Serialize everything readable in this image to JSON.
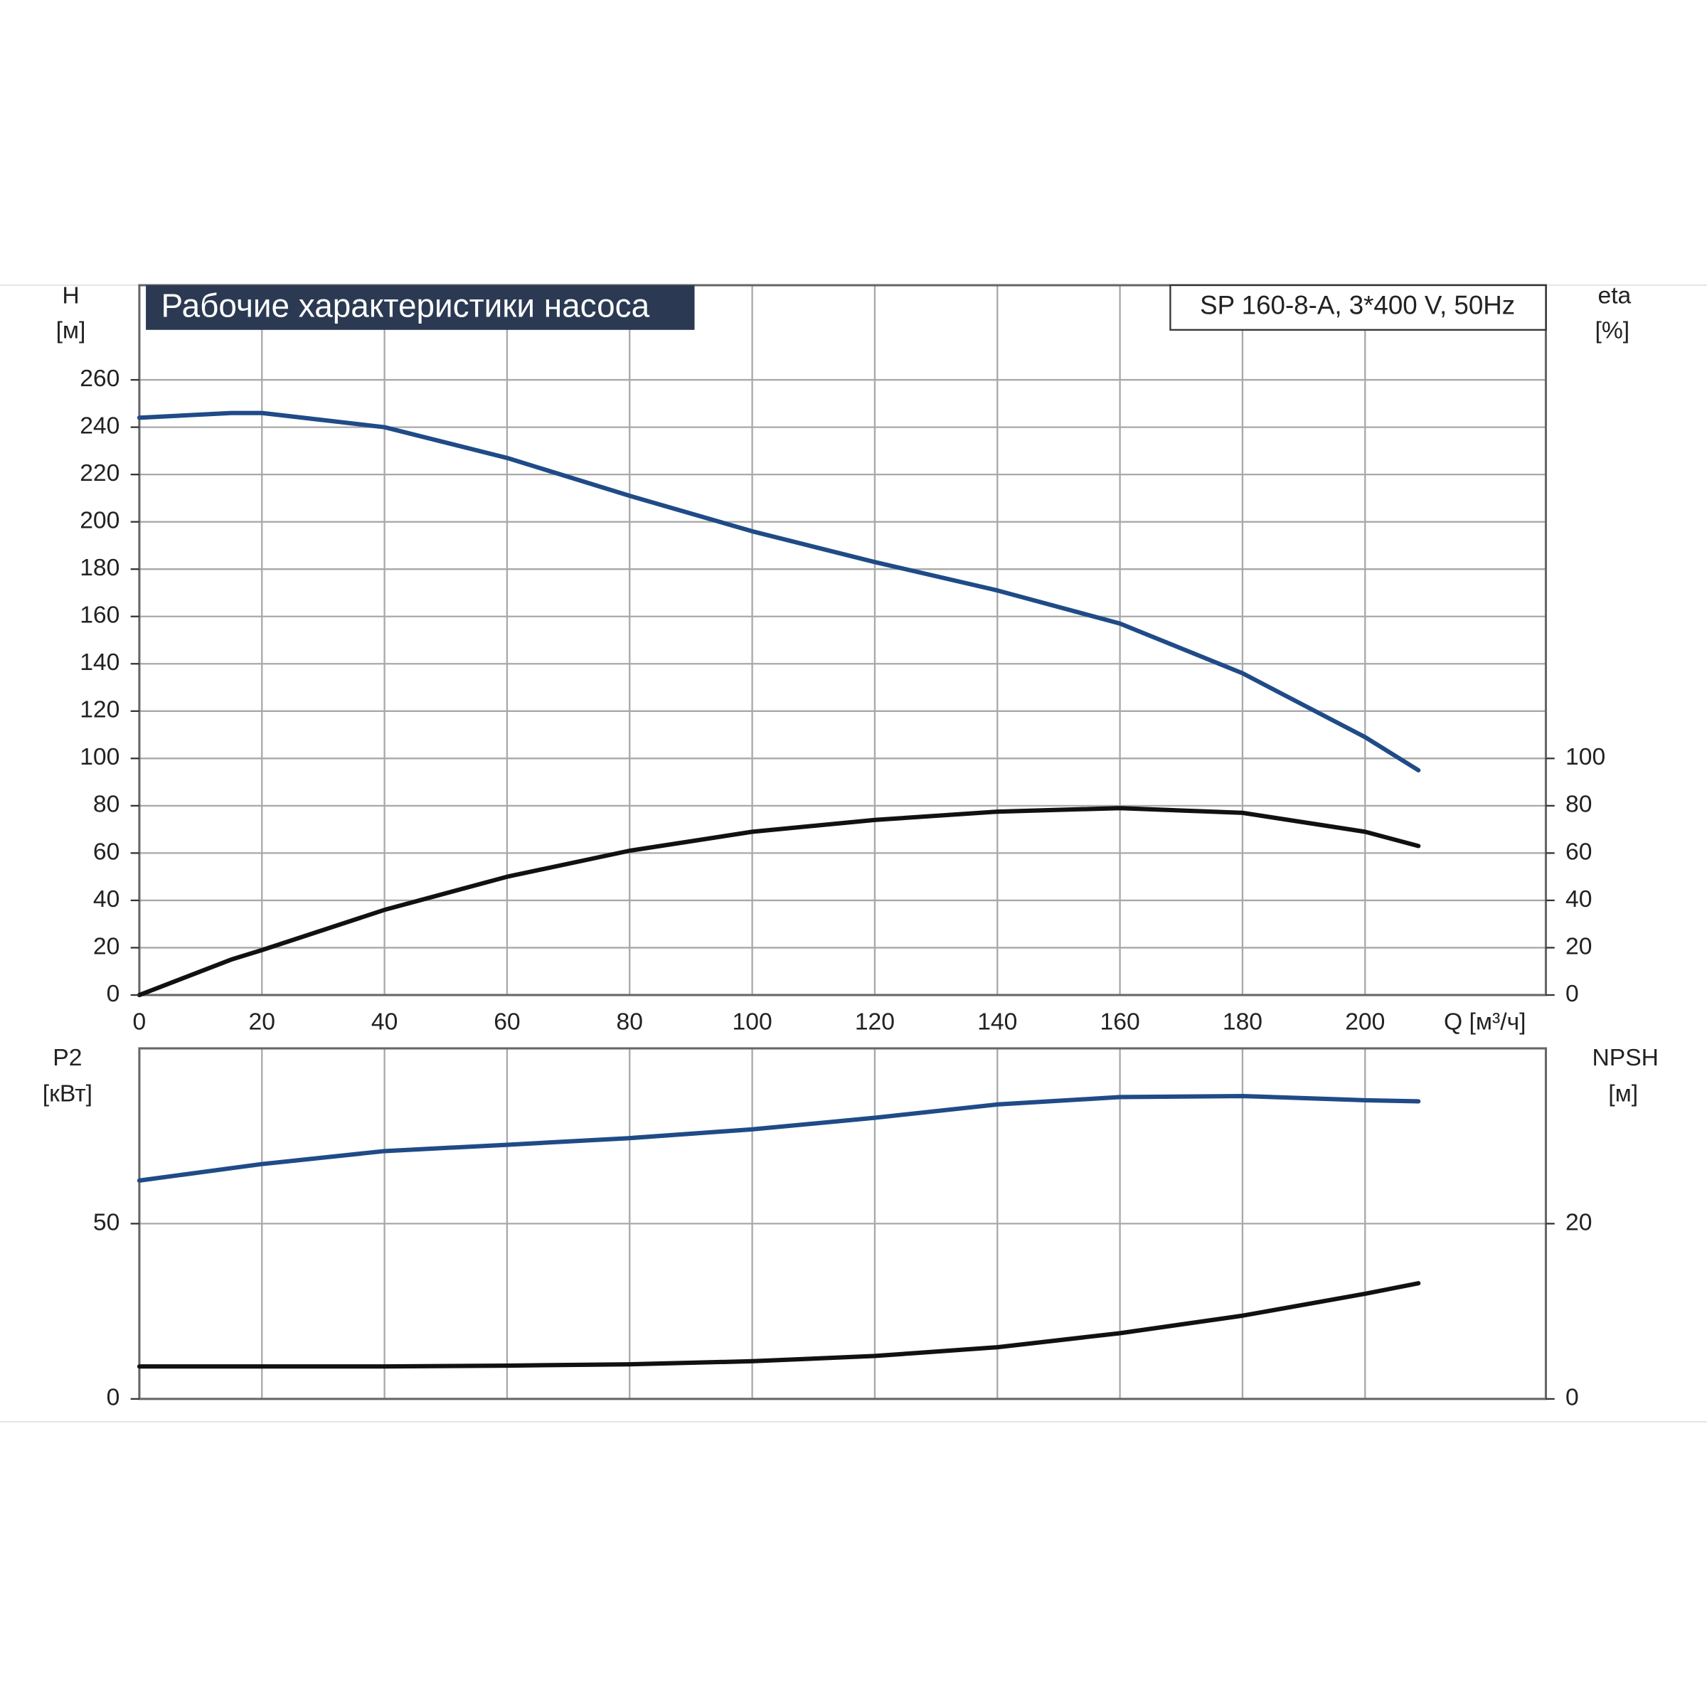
{
  "chart_data": [
    {
      "type": "line",
      "title": "Рабочие характеристики насоса",
      "subtitle": "SP 160-8-A, 3*400 V, 50Hz",
      "ylabel": "H",
      "ylabel_unit": "[м]",
      "y2label": "eta",
      "y2label_unit": "[%]",
      "xlabel": "Q [м³/ч]",
      "x": [
        0,
        15,
        20,
        40,
        60,
        80,
        100,
        120,
        140,
        160,
        180,
        200,
        208.7
      ],
      "xlim": [
        0,
        229.5
      ],
      "xticks": [
        0,
        20,
        40,
        60,
        80,
        100,
        120,
        140,
        160,
        180,
        200
      ],
      "ylim": [
        0,
        300
      ],
      "yticks": [
        0,
        20,
        40,
        60,
        80,
        100,
        120,
        140,
        160,
        180,
        200,
        220,
        240,
        260
      ],
      "y2lim": [
        0,
        300
      ],
      "y2ticks": [
        0,
        20,
        40,
        60,
        80,
        100
      ],
      "grid": true,
      "series": [
        {
          "name": "H",
          "color": "#1f4b87",
          "values": [
            244,
            246,
            246,
            240,
            227,
            211,
            196,
            183,
            171,
            157,
            136,
            109,
            95
          ]
        },
        {
          "name": "eta",
          "color": "#111111",
          "axis": "y2",
          "values": [
            0,
            15,
            19,
            36,
            50,
            61,
            69,
            74,
            77.5,
            79,
            77,
            69,
            63
          ]
        }
      ]
    },
    {
      "type": "line",
      "ylabel": "P2",
      "ylabel_unit": "[кВт]",
      "y2label": "NPSH",
      "y2label_unit": "[м]",
      "x": [
        0,
        20,
        40,
        60,
        80,
        100,
        120,
        140,
        160,
        180,
        200,
        208.7
      ],
      "xlim": [
        0,
        229.5
      ],
      "ylim": [
        0,
        100
      ],
      "yticks": [
        0,
        50
      ],
      "y2lim": [
        0,
        40
      ],
      "y2ticks": [
        0,
        20
      ],
      "grid": true,
      "series": [
        {
          "name": "P2",
          "color": "#1f4b87",
          "values": [
            62.3,
            67,
            70.7,
            72.5,
            74.4,
            76.9,
            80.2,
            84,
            86.1,
            86.4,
            85.2,
            84.9
          ]
        },
        {
          "name": "NPSH",
          "color": "#111111",
          "axis": "y2",
          "values": [
            3.7,
            3.7,
            3.7,
            3.8,
            3.95,
            4.3,
            4.9,
            5.9,
            7.5,
            9.5,
            12,
            13.2
          ]
        }
      ]
    }
  ]
}
